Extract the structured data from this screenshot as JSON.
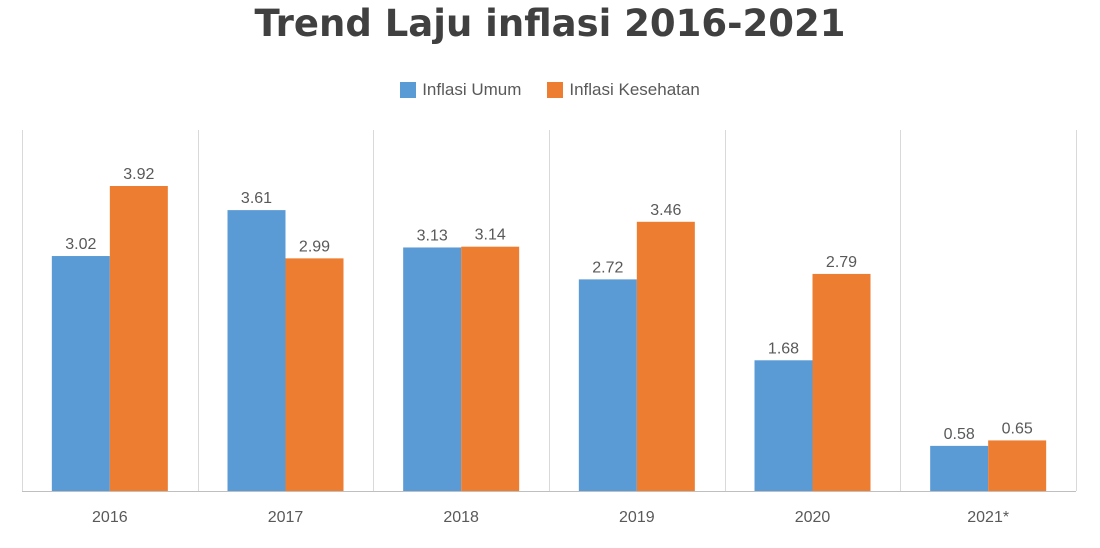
{
  "colors": {
    "series_umum": "#5b9bd5",
    "series_kesehatan": "#ed7d31",
    "gridline": "#d9d9d9",
    "axis": "#bfbfbf",
    "label_text": "#595959",
    "title_text": "#404040"
  },
  "chart_data": {
    "type": "bar",
    "title": "Trend Laju inflasi 2016-2021",
    "xlabel": "",
    "ylabel": "",
    "ylim": [
      0,
      4.5
    ],
    "categories": [
      "2016",
      "2017",
      "2018",
      "2019",
      "2020",
      "2021*"
    ],
    "series": [
      {
        "name": "Inflasi Umum",
        "values": [
          3.02,
          3.61,
          3.13,
          2.72,
          1.68,
          0.58
        ]
      },
      {
        "name": "Inflasi Kesehatan",
        "values": [
          3.92,
          2.99,
          3.14,
          3.46,
          2.79,
          0.65
        ]
      }
    ],
    "data_labels": [
      [
        "3.02",
        "3.61",
        "3.13",
        "2.72",
        "1.68",
        "0.58"
      ],
      [
        "3.92",
        "2.99",
        "3.14",
        "3.46",
        "2.79",
        "0.65"
      ]
    ],
    "legend_position": "top-center",
    "grid": "vertical-category-separators"
  }
}
